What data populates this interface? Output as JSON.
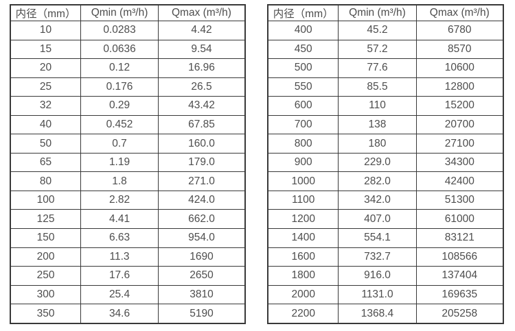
{
  "page": {
    "background_color": "#ffffff",
    "text_color": "#4d4d4d",
    "border_color": "#383838"
  },
  "tables": [
    {
      "name": "flow-rate-table-small-diameters",
      "headers": [
        "内径（mm）",
        "Qmin (m³/h)",
        "Qmax (m³/h)"
      ],
      "rows": [
        [
          "10",
          "0.0283",
          "4.42"
        ],
        [
          "15",
          "0.0636",
          "9.54"
        ],
        [
          "20",
          "0.12",
          "16.96"
        ],
        [
          "25",
          "0.176",
          "26.5"
        ],
        [
          "32",
          "0.29",
          "43.42"
        ],
        [
          "40",
          "0.452",
          "67.85"
        ],
        [
          "50",
          "0.7",
          "160.0"
        ],
        [
          "65",
          "1.19",
          "179.0"
        ],
        [
          "80",
          "1.8",
          "271.0"
        ],
        [
          "100",
          "2.82",
          "424.0"
        ],
        [
          "125",
          "4.41",
          "662.0"
        ],
        [
          "150",
          "6.63",
          "954.0"
        ],
        [
          "200",
          "11.3",
          "1690"
        ],
        [
          "250",
          "17.6",
          "2650"
        ],
        [
          "300",
          "25.4",
          "3810"
        ],
        [
          "350",
          "34.6",
          "5190"
        ]
      ]
    },
    {
      "name": "flow-rate-table-large-diameters",
      "headers": [
        "内径（mm）",
        "Qmin (m³/h)",
        "Qmax (m³/h)"
      ],
      "rows": [
        [
          "400",
          "45.2",
          "6780"
        ],
        [
          "450",
          "57.2",
          "8570"
        ],
        [
          "500",
          "77.6",
          "10600"
        ],
        [
          "550",
          "85.5",
          "12800"
        ],
        [
          "600",
          "110",
          "15200"
        ],
        [
          "700",
          "138",
          "20700"
        ],
        [
          "800",
          "180",
          "27100"
        ],
        [
          "900",
          "229.0",
          "34300"
        ],
        [
          "1000",
          "282.0",
          "42400"
        ],
        [
          "1100",
          "342.0",
          "51300"
        ],
        [
          "1200",
          "407.0",
          "61000"
        ],
        [
          "1400",
          "554.1",
          "83121"
        ],
        [
          "1600",
          "732.7",
          "108566"
        ],
        [
          "1800",
          "916.0",
          "137404"
        ],
        [
          "2000",
          "1131.0",
          "169635"
        ],
        [
          "2200",
          "1368.4",
          "205258"
        ]
      ]
    }
  ]
}
